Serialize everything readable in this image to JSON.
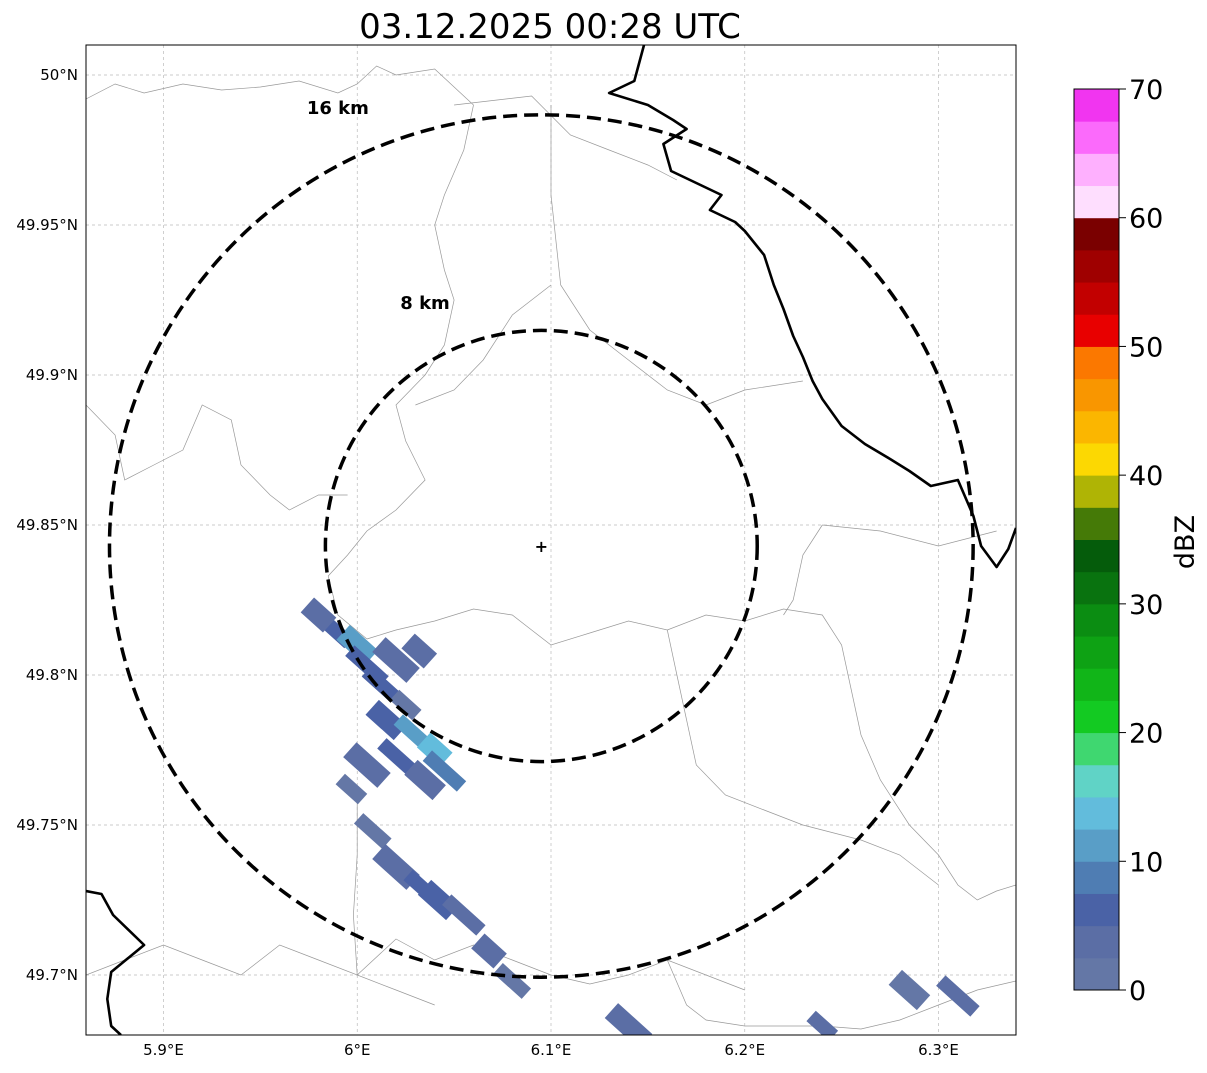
{
  "map": {
    "title": "03.12.2025 00:28 UTC",
    "bounds": {
      "lon_min": 5.86,
      "lon_max": 6.34,
      "lat_min": 49.68,
      "lat_max": 50.01
    },
    "center": {
      "lon": 6.095,
      "lat": 49.843
    },
    "rings": [
      {
        "radius_km": 8,
        "label": "8 km",
        "label_lon": 6.035,
        "label_lat": 49.922
      },
      {
        "radius_km": 16,
        "label": "16 km",
        "label_lon": 5.99,
        "label_lat": 49.987
      }
    ],
    "lon_ticks": [
      {
        "value": 5.9,
        "label": "5.9°E"
      },
      {
        "value": 6.0,
        "label": "6°E"
      },
      {
        "value": 6.1,
        "label": "6.1°E"
      },
      {
        "value": 6.2,
        "label": "6.2°E"
      },
      {
        "value": 6.3,
        "label": "6.3°E"
      }
    ],
    "lat_ticks": [
      {
        "value": 50.0,
        "label": "50°N"
      },
      {
        "value": 49.95,
        "label": "49.95°N"
      },
      {
        "value": 49.9,
        "label": "49.9°N"
      },
      {
        "value": 49.85,
        "label": "49.85°N"
      },
      {
        "value": 49.8,
        "label": "49.8°N"
      },
      {
        "value": 49.75,
        "label": "49.75°N"
      },
      {
        "value": 49.7,
        "label": "49.7°N"
      }
    ],
    "borders": {
      "national": [
        [
          [
            6.148,
            50.01
          ],
          [
            6.143,
            49.998
          ],
          [
            6.13,
            49.994
          ],
          [
            6.15,
            49.99
          ],
          [
            6.163,
            49.985
          ],
          [
            6.17,
            49.982
          ],
          [
            6.158,
            49.977
          ],
          [
            6.162,
            49.968
          ],
          [
            6.175,
            49.964
          ],
          [
            6.188,
            49.96
          ],
          [
            6.182,
            49.955
          ],
          [
            6.195,
            49.951
          ],
          [
            6.2,
            49.948
          ],
          [
            6.21,
            49.94
          ],
          [
            6.215,
            49.93
          ],
          [
            6.22,
            49.922
          ],
          [
            6.225,
            49.913
          ],
          [
            6.23,
            49.906
          ],
          [
            6.235,
            49.898
          ],
          [
            6.24,
            49.892
          ],
          [
            6.25,
            49.883
          ],
          [
            6.262,
            49.877
          ],
          [
            6.275,
            49.872
          ],
          [
            6.285,
            49.868
          ],
          [
            6.296,
            49.863
          ],
          [
            6.31,
            49.865
          ],
          [
            6.318,
            49.853
          ],
          [
            6.322,
            49.843
          ],
          [
            6.33,
            49.836
          ],
          [
            6.336,
            49.842
          ],
          [
            6.34,
            49.849
          ]
        ],
        [
          [
            5.86,
            49.728
          ],
          [
            5.868,
            49.727
          ],
          [
            5.874,
            49.72
          ],
          [
            5.89,
            49.71
          ],
          [
            5.873,
            49.701
          ],
          [
            5.871,
            49.692
          ],
          [
            5.873,
            49.683
          ],
          [
            5.878,
            49.68
          ]
        ]
      ],
      "minor": [
        [
          [
            5.86,
            49.992
          ],
          [
            5.875,
            49.997
          ],
          [
            5.89,
            49.994
          ],
          [
            5.91,
            49.997
          ],
          [
            5.93,
            49.995
          ],
          [
            5.95,
            49.996
          ],
          [
            5.97,
            49.998
          ],
          [
            5.99,
            49.994
          ],
          [
            6.0,
            49.997
          ],
          [
            6.01,
            50.003
          ],
          [
            6.02,
            50.0
          ],
          [
            6.04,
            50.002
          ],
          [
            6.05,
            49.996
          ],
          [
            6.06,
            49.99
          ]
        ],
        [
          [
            6.06,
            49.99
          ],
          [
            6.055,
            49.975
          ],
          [
            6.045,
            49.96
          ],
          [
            6.04,
            49.95
          ],
          [
            6.045,
            49.935
          ],
          [
            6.05,
            49.925
          ],
          [
            6.045,
            49.91
          ],
          [
            6.035,
            49.9
          ],
          [
            6.02,
            49.89
          ],
          [
            6.025,
            49.878
          ],
          [
            6.035,
            49.865
          ],
          [
            6.02,
            49.855
          ],
          [
            6.005,
            49.848
          ],
          [
            5.995,
            49.84
          ],
          [
            5.985,
            49.833
          ],
          [
            5.99,
            49.82
          ],
          [
            6.005,
            49.812
          ]
        ],
        [
          [
            6.005,
            49.812
          ],
          [
            6.02,
            49.815
          ],
          [
            6.04,
            49.818
          ],
          [
            6.06,
            49.822
          ],
          [
            6.08,
            49.82
          ],
          [
            6.09,
            49.815
          ],
          [
            6.1,
            49.81
          ],
          [
            6.12,
            49.814
          ],
          [
            6.14,
            49.818
          ],
          [
            6.16,
            49.815
          ],
          [
            6.18,
            49.82
          ],
          [
            6.2,
            49.818
          ],
          [
            6.22,
            49.822
          ],
          [
            6.24,
            49.82
          ],
          [
            6.25,
            49.81
          ],
          [
            6.255,
            49.795
          ],
          [
            6.26,
            49.78
          ],
          [
            6.27,
            49.765
          ],
          [
            6.285,
            49.75
          ],
          [
            6.3,
            49.74
          ],
          [
            6.31,
            49.73
          ],
          [
            6.32,
            49.725
          ],
          [
            6.33,
            49.728
          ],
          [
            6.34,
            49.73
          ]
        ],
        [
          [
            6.05,
            49.99
          ],
          [
            6.09,
            49.993
          ],
          [
            6.11,
            49.98
          ],
          [
            6.13,
            49.975
          ],
          [
            6.15,
            49.97
          ],
          [
            6.165,
            49.965
          ]
        ],
        [
          [
            6.1,
            49.99
          ],
          [
            6.1,
            49.96
          ],
          [
            6.105,
            49.93
          ],
          [
            6.12,
            49.915
          ],
          [
            6.14,
            49.905
          ],
          [
            6.16,
            49.895
          ],
          [
            6.18,
            49.89
          ],
          [
            6.2,
            49.895
          ],
          [
            6.23,
            49.898
          ]
        ],
        [
          [
            6.1,
            49.93
          ],
          [
            6.08,
            49.92
          ],
          [
            6.065,
            49.905
          ],
          [
            6.05,
            49.895
          ],
          [
            6.03,
            49.89
          ]
        ],
        [
          [
            5.86,
            49.89
          ],
          [
            5.875,
            49.88
          ],
          [
            5.88,
            49.865
          ],
          [
            5.895,
            49.87
          ],
          [
            5.91,
            49.875
          ],
          [
            5.92,
            49.89
          ],
          [
            5.935,
            49.885
          ],
          [
            5.94,
            49.87
          ],
          [
            5.955,
            49.86
          ],
          [
            5.965,
            49.855
          ],
          [
            5.98,
            49.86
          ],
          [
            5.995,
            49.86
          ]
        ],
        [
          [
            6.24,
            49.85
          ],
          [
            6.27,
            49.848
          ],
          [
            6.3,
            49.843
          ],
          [
            6.33,
            49.848
          ]
        ],
        [
          [
            6.24,
            49.85
          ],
          [
            6.23,
            49.84
          ],
          [
            6.225,
            49.825
          ],
          [
            6.22,
            49.82
          ]
        ],
        [
          [
            6.16,
            49.815
          ],
          [
            6.165,
            49.8
          ],
          [
            6.17,
            49.785
          ],
          [
            6.175,
            49.77
          ],
          [
            6.19,
            49.76
          ],
          [
            6.21,
            49.755
          ],
          [
            6.23,
            49.75
          ],
          [
            6.26,
            49.745
          ],
          [
            6.28,
            49.74
          ],
          [
            6.3,
            49.73
          ]
        ],
        [
          [
            5.86,
            49.7
          ],
          [
            5.88,
            49.705
          ],
          [
            5.9,
            49.71
          ],
          [
            5.92,
            49.705
          ],
          [
            5.94,
            49.7
          ],
          [
            5.96,
            49.71
          ],
          [
            5.98,
            49.705
          ],
          [
            6.0,
            49.7
          ],
          [
            6.02,
            49.712
          ],
          [
            6.04,
            49.705
          ],
          [
            6.06,
            49.71
          ],
          [
            6.08,
            49.705
          ],
          [
            6.1,
            49.7
          ],
          [
            6.12,
            49.697
          ],
          [
            6.14,
            49.7
          ],
          [
            6.16,
            49.705
          ],
          [
            6.18,
            49.7
          ],
          [
            6.2,
            49.695
          ]
        ],
        [
          [
            6.0,
            49.76
          ],
          [
            6.0,
            49.74
          ],
          [
            5.998,
            49.72
          ],
          [
            6.0,
            49.7
          ],
          [
            6.02,
            49.695
          ],
          [
            6.04,
            49.69
          ]
        ],
        [
          [
            6.16,
            49.705
          ],
          [
            6.17,
            49.69
          ],
          [
            6.18,
            49.685
          ],
          [
            6.2,
            49.683
          ],
          [
            6.24,
            49.683
          ],
          [
            6.26,
            49.682
          ],
          [
            6.28,
            49.685
          ],
          [
            6.3,
            49.69
          ],
          [
            6.32,
            49.695
          ],
          [
            6.34,
            49.698
          ]
        ]
      ]
    },
    "radar_cells": [
      {
        "lon": 5.99,
        "lat": 49.814,
        "dbz": 5
      },
      {
        "lon": 6.0,
        "lat": 49.81,
        "dbz": 10
      },
      {
        "lon": 6.005,
        "lat": 49.803,
        "dbz": 7
      },
      {
        "lon": 5.98,
        "lat": 49.82,
        "dbz": 3
      },
      {
        "lon": 6.012,
        "lat": 49.797,
        "dbz": 5
      },
      {
        "lon": 6.02,
        "lat": 49.805,
        "dbz": 3
      },
      {
        "lon": 6.025,
        "lat": 49.79,
        "dbz": 2
      },
      {
        "lon": 6.015,
        "lat": 49.785,
        "dbz": 7
      },
      {
        "lon": 6.03,
        "lat": 49.78,
        "dbz": 12
      },
      {
        "lon": 6.04,
        "lat": 49.775,
        "dbz": 13
      },
      {
        "lon": 6.02,
        "lat": 49.773,
        "dbz": 6
      },
      {
        "lon": 6.005,
        "lat": 49.77,
        "dbz": 4
      },
      {
        "lon": 5.997,
        "lat": 49.762,
        "dbz": 2
      },
      {
        "lon": 6.035,
        "lat": 49.765,
        "dbz": 3
      },
      {
        "lon": 6.045,
        "lat": 49.768,
        "dbz": 8
      },
      {
        "lon": 6.032,
        "lat": 49.808,
        "dbz": 4
      },
      {
        "lon": 6.008,
        "lat": 49.748,
        "dbz": 2
      },
      {
        "lon": 6.02,
        "lat": 49.736,
        "dbz": 4
      },
      {
        "lon": 6.032,
        "lat": 49.73,
        "dbz": 7
      },
      {
        "lon": 6.042,
        "lat": 49.725,
        "dbz": 6
      },
      {
        "lon": 6.055,
        "lat": 49.72,
        "dbz": 3
      },
      {
        "lon": 6.068,
        "lat": 49.708,
        "dbz": 3
      },
      {
        "lon": 6.08,
        "lat": 49.698,
        "dbz": 2
      },
      {
        "lon": 6.14,
        "lat": 49.683,
        "dbz": 4
      },
      {
        "lon": 6.24,
        "lat": 49.683,
        "dbz": 3
      },
      {
        "lon": 6.285,
        "lat": 49.695,
        "dbz": 2
      },
      {
        "lon": 6.31,
        "lat": 49.693,
        "dbz": 3
      }
    ]
  },
  "colorbar": {
    "label": "dBZ",
    "min": 0,
    "max": 70,
    "step": 2.5,
    "ticks": [
      0,
      10,
      20,
      30,
      40,
      50,
      60,
      70
    ],
    "colors": [
      "#6477a6",
      "#5b6ea5",
      "#4a62a6",
      "#4f7db3",
      "#599ec7",
      "#62bcdc",
      "#60d3c6",
      "#3fd770",
      "#13ca22",
      "#11b518",
      "#0ea214",
      "#0b8d12",
      "#09730f",
      "#055c0b",
      "#457a07",
      "#afb405",
      "#fcd802",
      "#fbb600",
      "#f99600",
      "#fb7800",
      "#e80000",
      "#c20000",
      "#9f0000",
      "#7a0000",
      "#fedefe",
      "#feb0fe",
      "#fb6afb",
      "#f135f0"
    ]
  }
}
